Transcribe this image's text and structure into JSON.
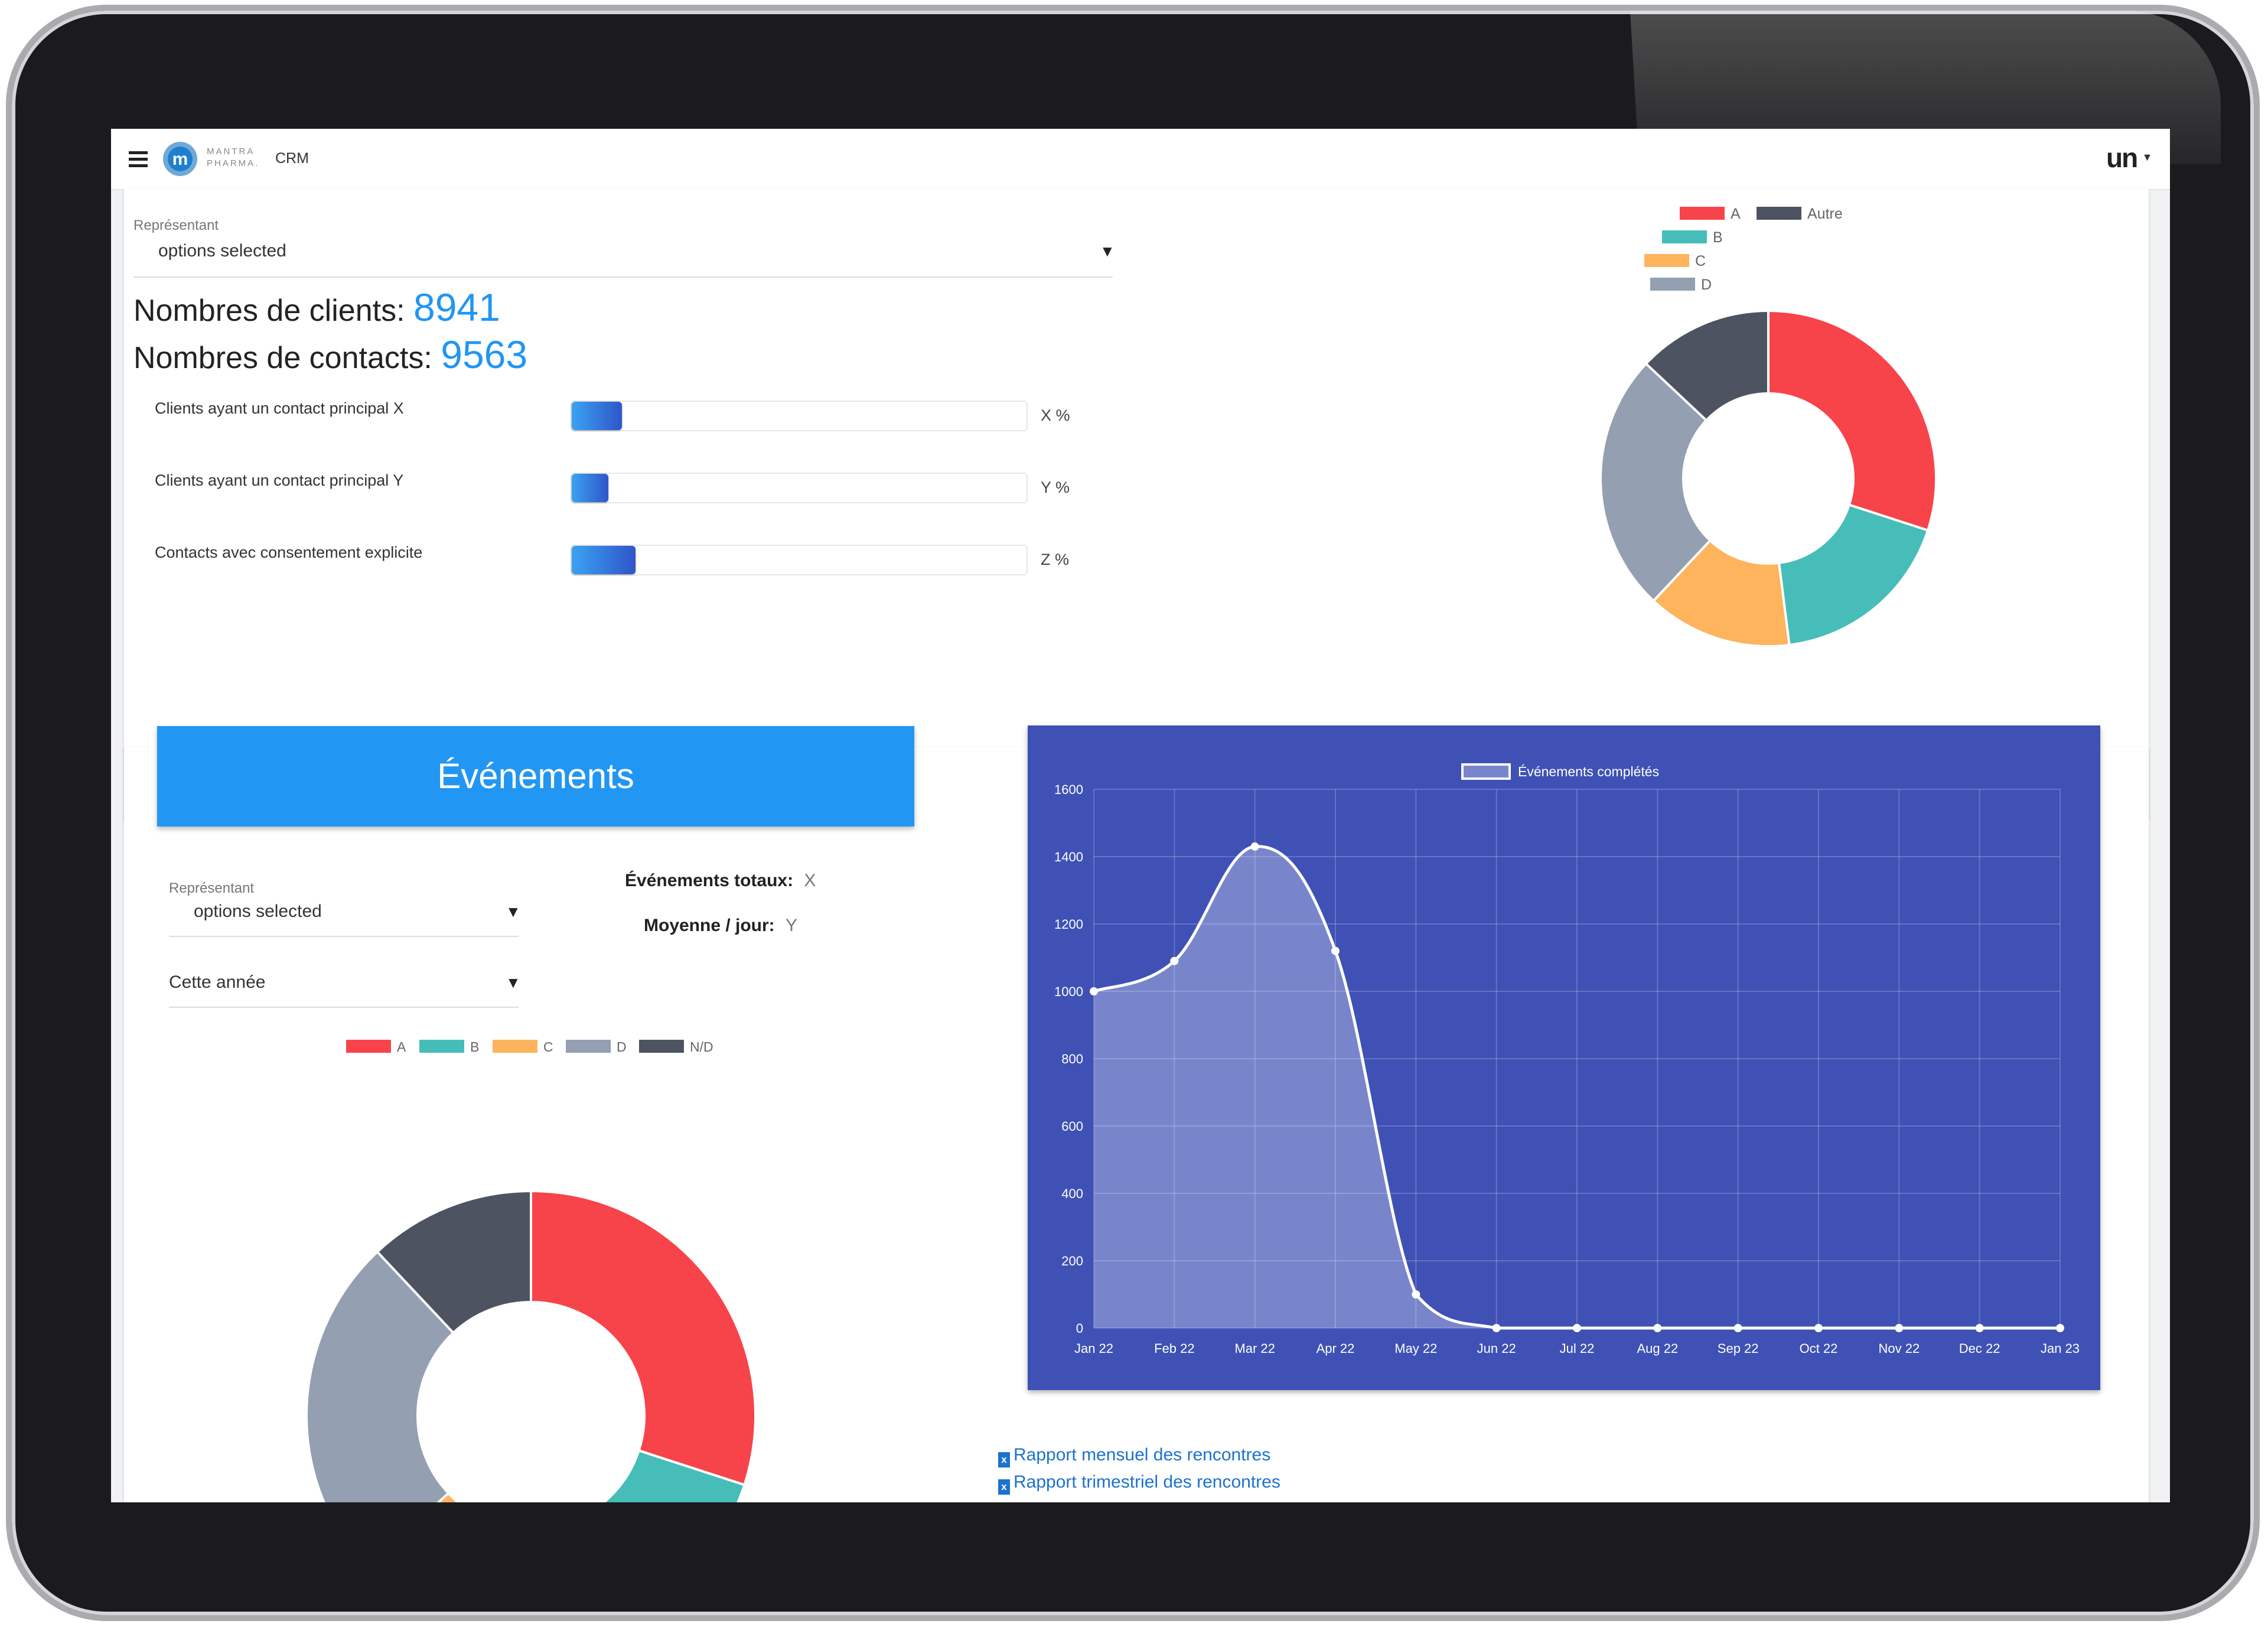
{
  "header": {
    "brand_line1": "MANTRA",
    "brand_line2": "PHARMA.",
    "app": "CRM",
    "user_mark": "un"
  },
  "summary": {
    "rep_label": "Représentant",
    "rep_value": "options selected",
    "clients_label": "Nombres de clients:",
    "clients_value": "8941",
    "contacts_label": "Nombres de contacts:",
    "contacts_value": "9563",
    "progress": [
      {
        "label": "Clients ayant un contact principal X",
        "pct_text": "X %",
        "fraction": 0.11
      },
      {
        "label": "Clients ayant un contact principal Y",
        "pct_text": "Y %",
        "fraction": 0.08
      },
      {
        "label": "Contacts avec consentement explicite",
        "pct_text": "Z %",
        "fraction": 0.14
      }
    ]
  },
  "events": {
    "title": "Événements",
    "rep_label": "Représentant",
    "rep_value": "options selected",
    "period_value": "Cette année",
    "total_label": "Événements totaux:",
    "total_value": "X",
    "avg_label": "Moyenne / jour:",
    "avg_value": "Y"
  },
  "links": [
    {
      "label": "Rapport mensuel des rencontres"
    },
    {
      "label": "Rapport trimestriel des rencontres"
    }
  ],
  "colors": {
    "A": "#f7444a",
    "B": "#46bdb9",
    "C": "#fdb45c",
    "D": "#949fb1",
    "E": "#4d5360",
    "accent": "#2196f3",
    "chart_bg": "#3f51b5"
  },
  "chart_data": [
    {
      "type": "pie",
      "legend": [
        "A",
        "Autre",
        "B",
        "C",
        "D"
      ],
      "labels": [
        "A",
        "B",
        "C",
        "D",
        "Autre"
      ],
      "values": [
        30,
        18,
        14,
        25,
        13
      ],
      "colors": [
        "#f7444a",
        "#46bdb9",
        "#fdb45c",
        "#949fb1",
        "#4d5360"
      ]
    },
    {
      "type": "pie",
      "labels": [
        "A",
        "B",
        "C",
        "D",
        "N/D"
      ],
      "values": [
        30,
        15,
        18,
        25,
        12
      ],
      "colors": [
        "#f7444a",
        "#46bdb9",
        "#fdb45c",
        "#949fb1",
        "#4d5360"
      ]
    },
    {
      "type": "area",
      "series_name": "Événements complétés",
      "categories": [
        "Jan 22",
        "Feb 22",
        "Mar 22",
        "Apr 22",
        "May 22",
        "Jun 22",
        "Jul 22",
        "Aug 22",
        "Sep 22",
        "Oct 22",
        "Nov 22",
        "Dec 22",
        "Jan 23"
      ],
      "values": [
        1000,
        1090,
        1430,
        1120,
        100,
        0,
        0,
        0,
        0,
        0,
        0,
        0,
        0
      ],
      "ylim": [
        0,
        1600
      ],
      "yticks": [
        0,
        200,
        400,
        600,
        800,
        1000,
        1200,
        1400,
        1600
      ],
      "grid": true,
      "legend": "top"
    }
  ]
}
